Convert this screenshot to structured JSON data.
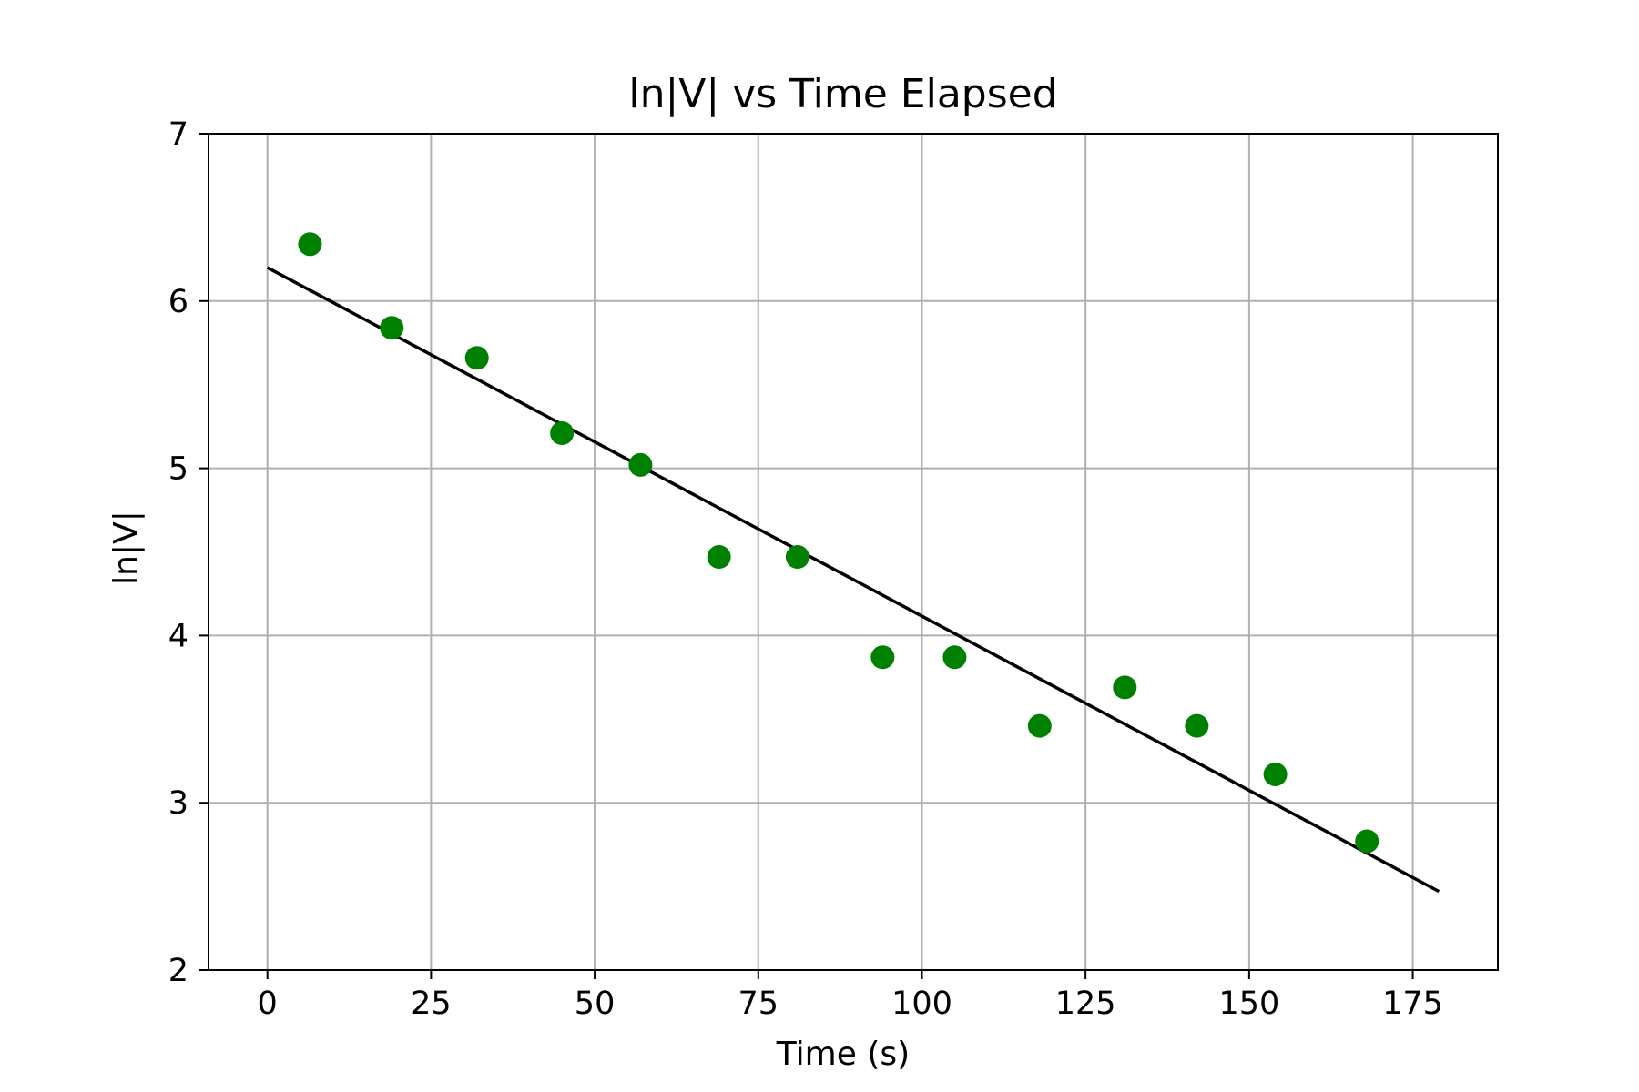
{
  "chart_data": {
    "type": "scatter",
    "title": "ln|V| vs Time Elapsed",
    "xlabel": "Time (s)",
    "ylabel": "ln|V|",
    "xlim": [
      -9,
      188
    ],
    "ylim": [
      2,
      7
    ],
    "xticks": [
      0,
      25,
      50,
      75,
      100,
      125,
      150,
      175
    ],
    "yticks": [
      2,
      3,
      4,
      5,
      6,
      7
    ],
    "grid": true,
    "legend": "none",
    "colors": {
      "points": "#008000",
      "fit_line": "#000000",
      "grid": "#b0b0b0"
    },
    "series": [
      {
        "type": "scatter",
        "x": [
          6.5,
          19,
          32,
          45,
          57,
          69,
          81,
          94,
          105,
          118,
          131,
          142,
          154,
          168
        ],
        "y": [
          6.34,
          5.84,
          5.66,
          5.21,
          5.02,
          4.47,
          4.47,
          3.87,
          3.87,
          3.46,
          3.69,
          3.46,
          3.17,
          2.77
        ]
      },
      {
        "type": "line",
        "x": [
          0,
          179
        ],
        "y": [
          6.2,
          2.47
        ]
      }
    ]
  }
}
